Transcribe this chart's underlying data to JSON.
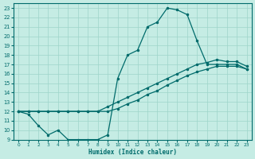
{
  "xlabel": "Humidex (Indice chaleur)",
  "bg_color": "#c5ece4",
  "grid_color": "#9ed4ca",
  "line_color": "#006b6b",
  "line1_x": [
    0,
    1,
    2,
    3,
    4,
    5,
    6,
    7,
    8,
    9,
    10,
    11,
    12,
    13,
    14,
    15,
    16,
    17,
    18,
    19,
    20,
    21,
    22,
    23
  ],
  "line1_y": [
    12,
    11.7,
    10.5,
    9.5,
    10,
    9,
    9,
    9,
    9,
    9.5,
    15.5,
    18,
    18.5,
    21,
    21.5,
    23,
    22.8,
    22.3,
    19.5,
    17,
    17,
    17,
    17,
    16.5
  ],
  "line2_x": [
    0,
    1,
    2,
    3,
    4,
    5,
    6,
    7,
    8,
    9,
    10,
    11,
    12,
    13,
    14,
    15,
    16,
    17,
    18,
    19,
    20,
    21,
    22,
    23
  ],
  "line2_y": [
    12,
    12,
    12,
    12,
    12,
    12,
    12,
    12,
    12,
    12,
    12.3,
    12.8,
    13.2,
    13.8,
    14.2,
    14.8,
    15.3,
    15.8,
    16.2,
    16.5,
    16.8,
    16.8,
    16.8,
    16.5
  ],
  "line3_x": [
    0,
    1,
    2,
    3,
    4,
    5,
    6,
    7,
    8,
    9,
    10,
    11,
    12,
    13,
    14,
    15,
    16,
    17,
    18,
    19,
    20,
    21,
    22,
    23
  ],
  "line3_y": [
    12,
    12,
    12,
    12,
    12,
    12,
    12,
    12,
    12,
    12.5,
    13,
    13.5,
    14,
    14.5,
    15,
    15.5,
    16,
    16.5,
    17,
    17.2,
    17.5,
    17.3,
    17.3,
    16.8
  ],
  "xticks": [
    0,
    1,
    2,
    3,
    4,
    5,
    6,
    7,
    8,
    9,
    10,
    11,
    12,
    13,
    14,
    15,
    16,
    17,
    18,
    19,
    20,
    21,
    22,
    23
  ],
  "yticks": [
    9,
    10,
    11,
    12,
    13,
    14,
    15,
    16,
    17,
    18,
    19,
    20,
    21,
    22,
    23
  ],
  "xlim": [
    -0.5,
    23.5
  ],
  "ylim": [
    9,
    23.5
  ]
}
